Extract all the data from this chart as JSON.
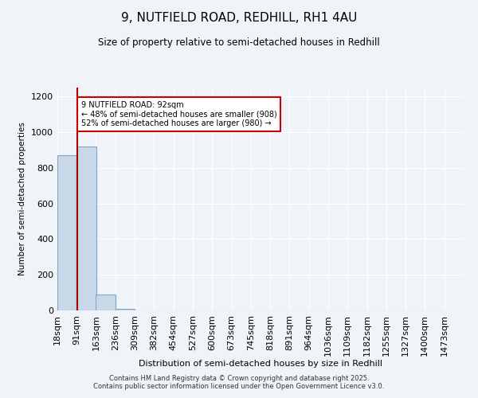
{
  "title": "9, NUTFIELD ROAD, REDHILL, RH1 4AU",
  "subtitle": "Size of property relative to semi-detached houses in Redhill",
  "xlabel": "Distribution of semi-detached houses by size in Redhill",
  "ylabel": "Number of semi-detached properties",
  "bin_labels": [
    "18sqm",
    "91sqm",
    "163sqm",
    "236sqm",
    "309sqm",
    "382sqm",
    "454sqm",
    "527sqm",
    "600sqm",
    "673sqm",
    "745sqm",
    "818sqm",
    "891sqm",
    "964sqm",
    "1036sqm",
    "1109sqm",
    "1182sqm",
    "1255sqm",
    "1327sqm",
    "1400sqm",
    "1473sqm"
  ],
  "bin_edges": [
    18,
    91,
    163,
    236,
    309,
    382,
    454,
    527,
    600,
    673,
    745,
    818,
    891,
    964,
    1036,
    1109,
    1182,
    1255,
    1327,
    1400,
    1473
  ],
  "bar_heights": [
    870,
    920,
    90,
    8,
    0,
    0,
    0,
    0,
    0,
    0,
    0,
    0,
    0,
    0,
    0,
    0,
    0,
    0,
    0,
    0
  ],
  "bar_color": "#c8d8e8",
  "bar_edge_color": "#7aa8c8",
  "property_size": 92,
  "property_line_color": "#aa0000",
  "annotation_text": "9 NUTFIELD ROAD: 92sqm\n← 48% of semi-detached houses are smaller (908)\n52% of semi-detached houses are larger (980) →",
  "annotation_box_color": "#ffffff",
  "annotation_box_edge": "#cc0000",
  "ylim": [
    0,
    1250
  ],
  "yticks": [
    0,
    200,
    400,
    600,
    800,
    1000,
    1200
  ],
  "footer_line1": "Contains HM Land Registry data © Crown copyright and database right 2025.",
  "footer_line2": "Contains public sector information licensed under the Open Government Licence v3.0.",
  "bg_color": "#f0f4f8"
}
